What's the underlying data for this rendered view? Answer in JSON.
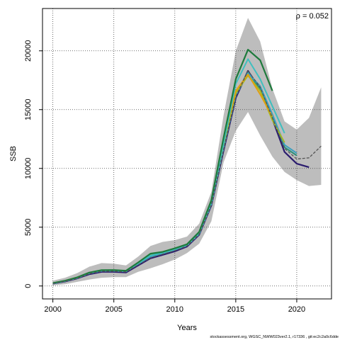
{
  "chart_data": {
    "type": "line",
    "xlabel": "Years",
    "ylabel": "SSB",
    "xlim": [
      1999.15,
      2022.85
    ],
    "ylim": [
      -1100,
      23600
    ],
    "x_ticks": [
      2000,
      2005,
      2010,
      2015,
      2020
    ],
    "y_ticks": [
      0,
      5000,
      10000,
      15000,
      20000
    ],
    "grid": true,
    "annotation": "ρ = 0.052",
    "footer": "stockassessment.org, WGSC_NWW023ver2.1, r17336 , git:ec2c2a0c6dde",
    "confidence_band": {
      "x": [
        2000,
        2001,
        2002,
        2003,
        2004,
        2005,
        2006,
        2007,
        2008,
        2009,
        2010,
        2011,
        2012,
        2013,
        2014,
        2015,
        2016,
        2017,
        2018,
        2019,
        2020,
        2021,
        2022
      ],
      "upper": [
        450,
        700,
        1100,
        1650,
        1950,
        1900,
        1750,
        2500,
        3400,
        3750,
        3900,
        4200,
        5300,
        8000,
        14500,
        20000,
        22800,
        20800,
        16800,
        14000,
        13300,
        14300,
        16900
      ],
      "lower": [
        50,
        150,
        350,
        550,
        700,
        750,
        750,
        1200,
        1500,
        1850,
        2250,
        2800,
        3600,
        5500,
        10500,
        13200,
        14800,
        12800,
        11000,
        9700,
        9000,
        8500,
        8600
      ]
    },
    "series": [
      {
        "color": "#555555",
        "width": 1.3,
        "dash": "4,2",
        "x": [
          2000,
          2001,
          2002,
          2003,
          2004,
          2005,
          2006,
          2007,
          2008,
          2009,
          2010,
          2011,
          2012,
          2013,
          2014,
          2015,
          2016,
          2017,
          2018,
          2019,
          2020,
          2021,
          2022
        ],
        "values": [
          200,
          400,
          650,
          1050,
          1250,
          1250,
          1200,
          1800,
          2400,
          2700,
          3000,
          3400,
          4400,
          6900,
          11600,
          16100,
          18300,
          16900,
          14300,
          11700,
          10800,
          10900,
          11900
        ]
      },
      {
        "color": "#2a1b6e",
        "width": 2.2,
        "x": [
          2000,
          2001,
          2002,
          2003,
          2004,
          2005,
          2006,
          2007,
          2008,
          2009,
          2010,
          2011,
          2012,
          2013,
          2014,
          2015,
          2016,
          2017,
          2018,
          2019,
          2020,
          2021
        ],
        "values": [
          200,
          380,
          650,
          1000,
          1200,
          1200,
          1150,
          1750,
          2350,
          2650,
          2950,
          3350,
          4350,
          6850,
          11500,
          16000,
          18300,
          16700,
          14200,
          11400,
          10400,
          10100
        ]
      },
      {
        "color": "#2b8f7a",
        "width": 2.0,
        "x": [
          2000,
          2001,
          2002,
          2003,
          2004,
          2005,
          2006,
          2007,
          2008,
          2009,
          2010,
          2011,
          2012,
          2013,
          2014,
          2015,
          2016,
          2017,
          2018,
          2019,
          2020
        ],
        "values": [
          220,
          420,
          700,
          1100,
          1300,
          1300,
          1250,
          1900,
          2550,
          2800,
          3100,
          3450,
          4450,
          7000,
          11800,
          16300,
          18200,
          16700,
          14400,
          11800,
          11100
        ]
      },
      {
        "color": "#3a9fbf",
        "width": 2.0,
        "x": [
          2000,
          2001,
          2002,
          2003,
          2004,
          2005,
          2006,
          2007,
          2008,
          2009,
          2010,
          2011,
          2012,
          2013,
          2014,
          2015,
          2016,
          2017,
          2018,
          2019,
          2020
        ],
        "values": [
          210,
          410,
          680,
          1080,
          1280,
          1290,
          1230,
          1870,
          2500,
          2780,
          3080,
          3430,
          4420,
          6950,
          11700,
          16200,
          18100,
          17000,
          14600,
          12000,
          11300
        ]
      },
      {
        "color": "#a8b820",
        "width": 2.0,
        "x": [
          2000,
          2001,
          2002,
          2003,
          2004,
          2005,
          2006,
          2007,
          2008,
          2009,
          2010,
          2011,
          2012,
          2013,
          2014,
          2015,
          2016,
          2017,
          2018,
          2019
        ],
        "values": [
          230,
          430,
          720,
          1120,
          1330,
          1330,
          1280,
          1950,
          2650,
          2850,
          3150,
          3500,
          4500,
          7100,
          12000,
          16400,
          17900,
          16600,
          14100,
          12200
        ]
      },
      {
        "color": "#e0a010",
        "width": 2.0,
        "x": [
          2000,
          2001,
          2002,
          2003,
          2004,
          2005,
          2006,
          2007,
          2008,
          2009,
          2010,
          2011,
          2012,
          2013,
          2014,
          2015,
          2016,
          2017,
          2018
        ],
        "values": [
          240,
          440,
          730,
          1130,
          1340,
          1340,
          1290,
          1970,
          2700,
          2870,
          3170,
          3520,
          4520,
          7150,
          12300,
          16600,
          18000,
          16300,
          14400
        ]
      },
      {
        "color": "#3fbfbf",
        "width": 2.0,
        "x": [
          2000,
          2001,
          2002,
          2003,
          2004,
          2005,
          2006,
          2007,
          2008,
          2009,
          2010,
          2011,
          2012,
          2013,
          2014,
          2015,
          2016,
          2017,
          2018,
          2019
        ],
        "values": [
          220,
          420,
          710,
          1110,
          1320,
          1320,
          1270,
          1930,
          2600,
          2820,
          3120,
          3480,
          4480,
          7050,
          12100,
          17200,
          19300,
          17600,
          15300,
          13000
        ]
      },
      {
        "color": "#1e7a3c",
        "width": 2.2,
        "x": [
          2000,
          2001,
          2002,
          2003,
          2004,
          2005,
          2006,
          2007,
          2008,
          2009,
          2010,
          2011,
          2012,
          2013,
          2014,
          2015,
          2016,
          2017,
          2018
        ],
        "values": [
          250,
          450,
          740,
          1150,
          1350,
          1360,
          1300,
          2000,
          2750,
          2900,
          3200,
          3550,
          4600,
          7300,
          12600,
          17600,
          20100,
          19200,
          16600
        ]
      }
    ]
  }
}
